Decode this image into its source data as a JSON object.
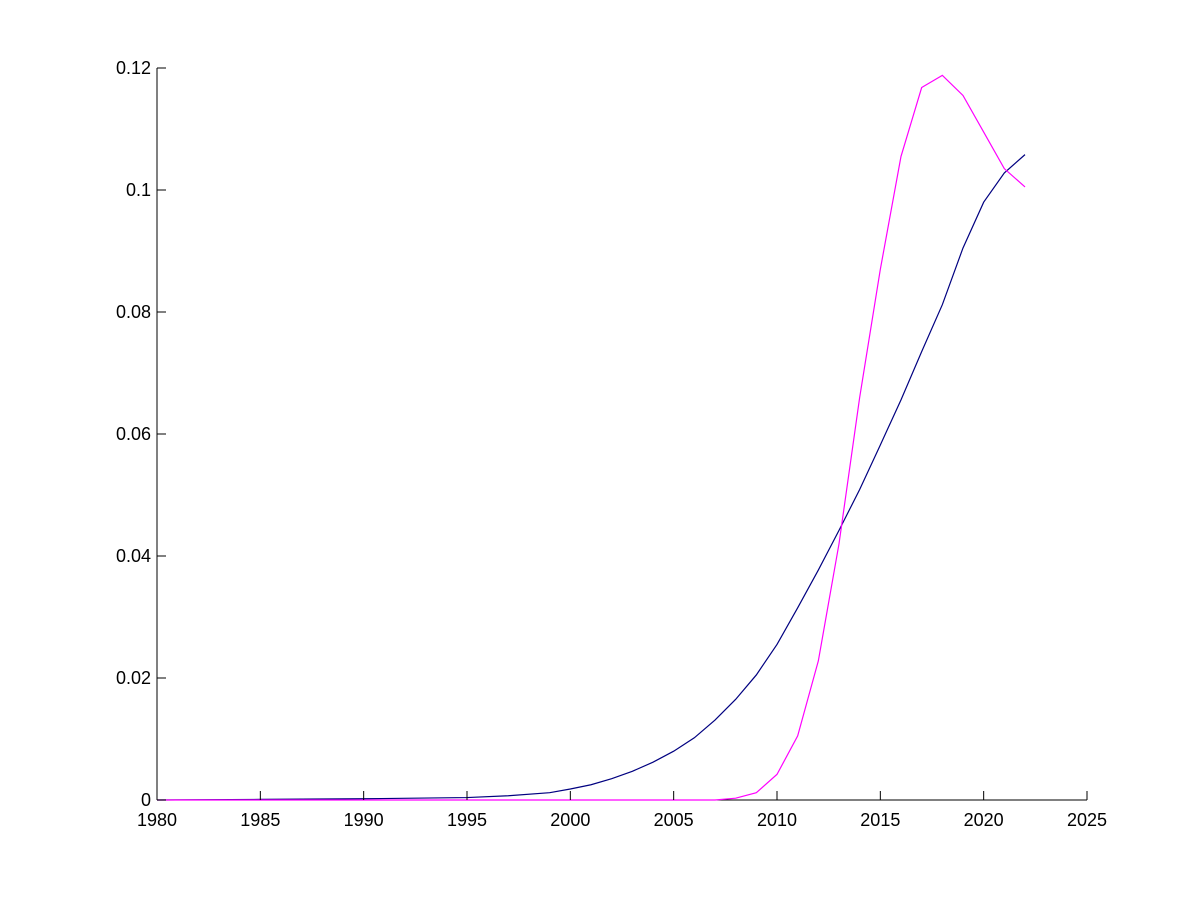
{
  "chart_data": {
    "type": "line",
    "title": "",
    "xlabel": "",
    "ylabel": "",
    "xlim": [
      1980,
      2025
    ],
    "ylim": [
      0,
      0.12
    ],
    "grid": false,
    "x_ticks": [
      1980,
      1985,
      1990,
      1995,
      2000,
      2005,
      2010,
      2015,
      2020,
      2025
    ],
    "x_tick_labels": [
      "1980",
      "1985",
      "1990",
      "1995",
      "2000",
      "2005",
      "2010",
      "2015",
      "2020",
      "2025"
    ],
    "y_ticks": [
      0,
      0.02,
      0.04,
      0.06,
      0.08,
      0.1,
      0.12
    ],
    "y_tick_labels": [
      "0",
      "0.02",
      "0.04",
      "0.06",
      "0.08",
      "0.1",
      "0.12"
    ],
    "series": [
      {
        "color": "#000080",
        "x": [
          1980,
          1985,
          1990,
          1995,
          1997,
          1999,
          2000,
          2001,
          2002,
          2003,
          2004,
          2005,
          2006,
          2007,
          2008,
          2009,
          2010,
          2011,
          2012,
          2013,
          2014,
          2015,
          2016,
          2017,
          2018,
          2019,
          2020,
          2021,
          2022
        ],
        "values": [
          0.0,
          0.0001,
          0.0002,
          0.0004,
          0.0007,
          0.0012,
          0.0018,
          0.0025,
          0.0035,
          0.0047,
          0.0062,
          0.008,
          0.0102,
          0.0131,
          0.0165,
          0.0205,
          0.0255,
          0.0315,
          0.0377,
          0.0442,
          0.0509,
          0.0582,
          0.0656,
          0.0735,
          0.0812,
          0.0905,
          0.098,
          0.1028,
          0.1058
        ]
      },
      {
        "color": "#ff00ff",
        "x": [
          1980,
          1990,
          2000,
          2007,
          2008,
          2009,
          2010,
          2011,
          2012,
          2013,
          2014,
          2015,
          2016,
          2017,
          2018,
          2019,
          2020,
          2021,
          2022
        ],
        "values": [
          0.0,
          0.0,
          0.0,
          0.0,
          0.0003,
          0.0012,
          0.0042,
          0.0105,
          0.0228,
          0.042,
          0.066,
          0.087,
          0.1055,
          0.1168,
          0.1188,
          0.1155,
          0.1095,
          0.1035,
          0.1005
        ]
      }
    ]
  }
}
